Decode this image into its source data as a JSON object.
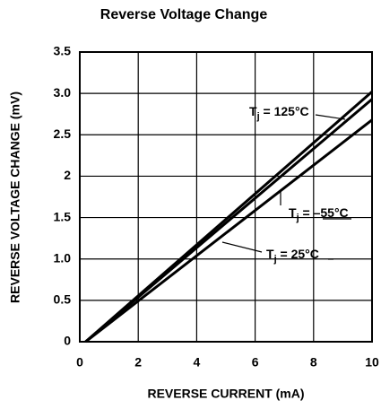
{
  "chart_data": {
    "type": "line",
    "title": "Reverse Voltage Change",
    "x_label": "REVERSE CURRENT (mA)",
    "y_label": "REVERSE VOLTAGE CHANGE (mV)",
    "x": [
      0.2,
      10
    ],
    "series": [
      {
        "name": "125°C",
        "color": "#000000",
        "values": [
          0,
          3.02
        ]
      },
      {
        "name": "-55°C",
        "color": "#000000",
        "values": [
          0,
          2.93
        ]
      },
      {
        "name": "25°C",
        "color": "#000000",
        "values": [
          0,
          2.68
        ]
      }
    ],
    "annotations": [
      {
        "text": "T",
        "subscript": "j",
        "suffix": " = 125°C"
      },
      {
        "text": "T",
        "subscript": "j",
        "suffix": " = –55°C"
      },
      {
        "text": "T",
        "subscript": "j",
        "suffix": " = 25°C"
      }
    ],
    "xlim": [
      0,
      10
    ],
    "xticks": [
      0,
      2,
      4,
      6,
      8,
      10
    ],
    "ylim": [
      0,
      3.5
    ],
    "yticks": [
      0,
      0.5,
      {
        "value": 1,
        "label": "1.0"
      },
      1.5,
      2,
      2.5,
      {
        "value": 3,
        "label": "3.0"
      },
      3.5
    ],
    "grid": true
  }
}
